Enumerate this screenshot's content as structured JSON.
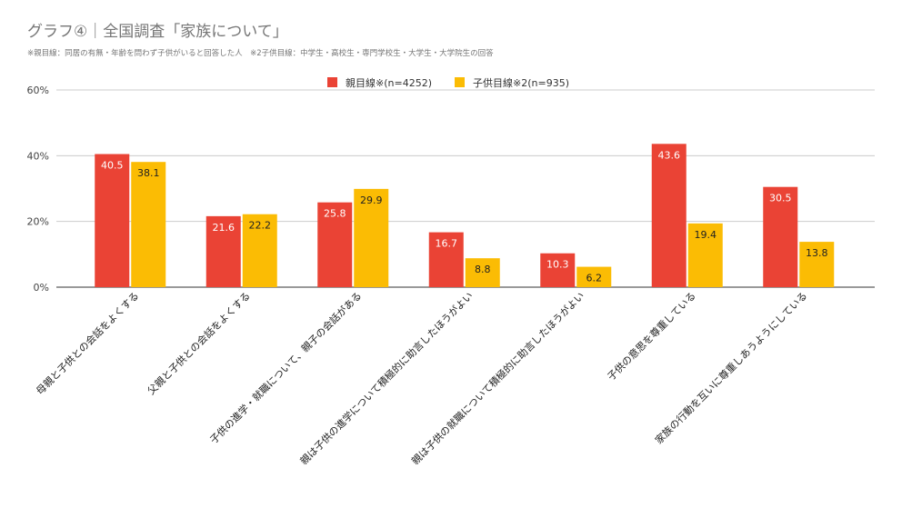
{
  "chart_data": {
    "type": "bar",
    "title": "グラフ④｜全国調査「家族について」",
    "subtitle": "※親目線：同居の有無・年齢を問わず子供がいると回答した人　※2子供目線：中学生・高校生・専門学校生・大学生・大学院生の回答",
    "categories": [
      "母親と子供との会話をよくする",
      "父親と子供との会話をよくする",
      "子供の進学・就職について、親子の会話がある",
      "親は子供の進学について積極的に助言したほうがよい",
      "親は子供の就職について積極的に助言したほうがよい",
      "子供の意思を尊重している",
      "家族の行動を互いに尊重しあうようにしている"
    ],
    "series": [
      {
        "name": "親目線※(n=4252)",
        "color": "#ea4335",
        "values": [
          40.5,
          21.6,
          25.8,
          16.7,
          10.3,
          43.6,
          30.5
        ]
      },
      {
        "name": "子供目線※2(n=935)",
        "color": "#fbbc04",
        "values": [
          38.1,
          22.2,
          29.9,
          8.8,
          6.2,
          19.4,
          13.8
        ]
      }
    ],
    "ylim": [
      0,
      60
    ],
    "yticks": [
      "0%",
      "20%",
      "40%",
      "60%"
    ],
    "legend": "top",
    "grid": true
  }
}
